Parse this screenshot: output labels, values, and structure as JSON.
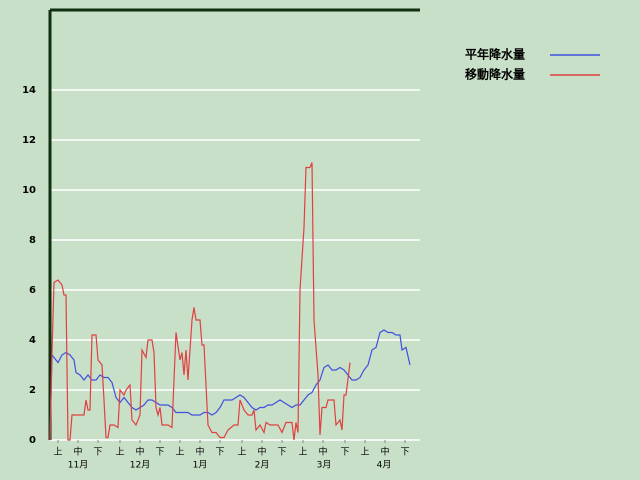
{
  "chart_data": {
    "type": "line",
    "xlim": [
      0,
      185
    ],
    "ylim": [
      0,
      17.2
    ],
    "yticks": [
      0,
      2,
      4,
      6,
      8,
      10,
      12,
      14
    ],
    "grid": true,
    "xticks": [
      {
        "value": 4,
        "label": "上"
      },
      {
        "value": 14,
        "label": "中"
      },
      {
        "value": 24,
        "label": "下"
      },
      {
        "value": 35,
        "label": "上"
      },
      {
        "value": 45,
        "label": "中"
      },
      {
        "value": 55,
        "label": "下"
      },
      {
        "value": 65,
        "label": "上"
      },
      {
        "value": 75,
        "label": "中"
      },
      {
        "value": 85,
        "label": "下"
      },
      {
        "value": 96,
        "label": "上"
      },
      {
        "value": 106,
        "label": "中"
      },
      {
        "value": 116,
        "label": "下"
      },
      {
        "value": 126.5,
        "label": "上"
      },
      {
        "value": 136.5,
        "label": "中"
      },
      {
        "value": 147.5,
        "label": "下"
      },
      {
        "value": 157.5,
        "label": "上"
      },
      {
        "value": 167.5,
        "label": "中"
      },
      {
        "value": 177.5,
        "label": "下"
      }
    ],
    "month_labels": [
      {
        "value": 14,
        "label": "11月"
      },
      {
        "value": 45,
        "label": "12月"
      },
      {
        "value": 75,
        "label": "1月"
      },
      {
        "value": 106,
        "label": "2月"
      },
      {
        "value": 137,
        "label": "3月"
      },
      {
        "value": 167,
        "label": "4月"
      }
    ],
    "series": [
      {
        "name": "平年降水量",
        "color": "#4050e0",
        "x": [
          0,
          1,
          4,
          6,
          8,
          10,
          12,
          13,
          15,
          17,
          19,
          21,
          23,
          25,
          27,
          29,
          31,
          33,
          35,
          37,
          39,
          41,
          43,
          45,
          47,
          49,
          51,
          53,
          55,
          57,
          59,
          61,
          63,
          65,
          67,
          69,
          71,
          73,
          75,
          77,
          79,
          81,
          83,
          85,
          87,
          89,
          91,
          93,
          95,
          97,
          99,
          101,
          103,
          105,
          107,
          109,
          111,
          113,
          115,
          117,
          119,
          121,
          123,
          125,
          127,
          129,
          131,
          133,
          135,
          137,
          139,
          141,
          143,
          145,
          147,
          149,
          151,
          153,
          155,
          157,
          159,
          161,
          163,
          165,
          167,
          169,
          171,
          173,
          175,
          176,
          178,
          180
        ],
        "values": [
          0,
          3.4,
          3.1,
          3.4,
          3.5,
          3.4,
          3.2,
          2.7,
          2.6,
          2.4,
          2.6,
          2.4,
          2.4,
          2.6,
          2.5,
          2.5,
          2.3,
          1.7,
          1.5,
          1.7,
          1.5,
          1.3,
          1.2,
          1.3,
          1.4,
          1.6,
          1.6,
          1.5,
          1.4,
          1.4,
          1.4,
          1.3,
          1.1,
          1.1,
          1.1,
          1.1,
          1.0,
          1.0,
          1.0,
          1.1,
          1.1,
          1.0,
          1.1,
          1.3,
          1.6,
          1.6,
          1.6,
          1.7,
          1.8,
          1.7,
          1.5,
          1.3,
          1.2,
          1.3,
          1.3,
          1.4,
          1.4,
          1.5,
          1.6,
          1.5,
          1.4,
          1.3,
          1.4,
          1.4,
          1.6,
          1.8,
          1.9,
          2.2,
          2.4,
          2.9,
          3.0,
          2.8,
          2.8,
          2.9,
          2.8,
          2.6,
          2.4,
          2.4,
          2.5,
          2.8,
          3.0,
          3.6,
          3.7,
          4.3,
          4.4,
          4.3,
          4.3,
          4.2,
          4.2,
          3.6,
          3.7,
          3.0
        ]
      },
      {
        "name": "移動降水量",
        "color": "#e04040",
        "x": [
          0,
          1,
          2,
          4,
          6,
          7,
          8,
          9,
          10,
          11,
          13,
          15,
          17,
          18,
          19,
          20,
          21,
          23,
          24,
          26,
          27,
          28,
          29,
          30,
          32,
          34,
          35,
          37,
          38,
          40,
          41,
          43,
          45,
          46,
          48,
          49,
          51,
          52,
          53,
          54,
          55,
          56,
          59,
          61,
          63,
          65,
          66,
          67,
          68,
          69,
          71,
          72,
          73,
          75,
          76,
          77,
          79,
          81,
          83,
          85,
          87,
          89,
          92,
          94,
          95,
          97,
          99,
          101,
          102,
          103,
          105,
          107,
          108,
          110,
          112,
          114,
          116,
          118,
          121,
          122,
          123,
          124,
          125,
          127,
          128,
          130,
          131,
          132,
          134,
          135,
          136,
          138,
          139,
          142,
          143,
          145,
          146,
          147,
          148,
          150
        ],
        "values": [
          0,
          3.5,
          6.3,
          6.4,
          6.2,
          5.8,
          5.8,
          0,
          0,
          1.0,
          1.0,
          1.0,
          1.0,
          1.6,
          1.2,
          1.2,
          4.2,
          4.2,
          3.2,
          3.0,
          1.6,
          0.1,
          0.1,
          0.6,
          0.6,
          0.5,
          2.0,
          1.8,
          2.0,
          2.2,
          0.8,
          0.6,
          1.0,
          3.6,
          3.3,
          4.0,
          4.0,
          3.5,
          1.3,
          1.0,
          1.3,
          0.6,
          0.6,
          0.5,
          4.3,
          3.2,
          3.5,
          2.6,
          3.6,
          2.4,
          4.8,
          5.3,
          4.8,
          4.8,
          3.8,
          3.8,
          0.6,
          0.3,
          0.3,
          0.1,
          0.1,
          0.4,
          0.6,
          0.6,
          1.6,
          1.2,
          1.0,
          1.0,
          1.2,
          0.4,
          0.6,
          0.3,
          0.7,
          0.6,
          0.6,
          0.6,
          0.3,
          0.7,
          0.7,
          0,
          0.7,
          0.3,
          6,
          8.5,
          10.9,
          10.9,
          11.1,
          4.8,
          2.6,
          0.2,
          1.3,
          1.3,
          1.6,
          1.6,
          0.6,
          0.8,
          0.4,
          1.8,
          1.8,
          3.1
        ]
      }
    ]
  }
}
